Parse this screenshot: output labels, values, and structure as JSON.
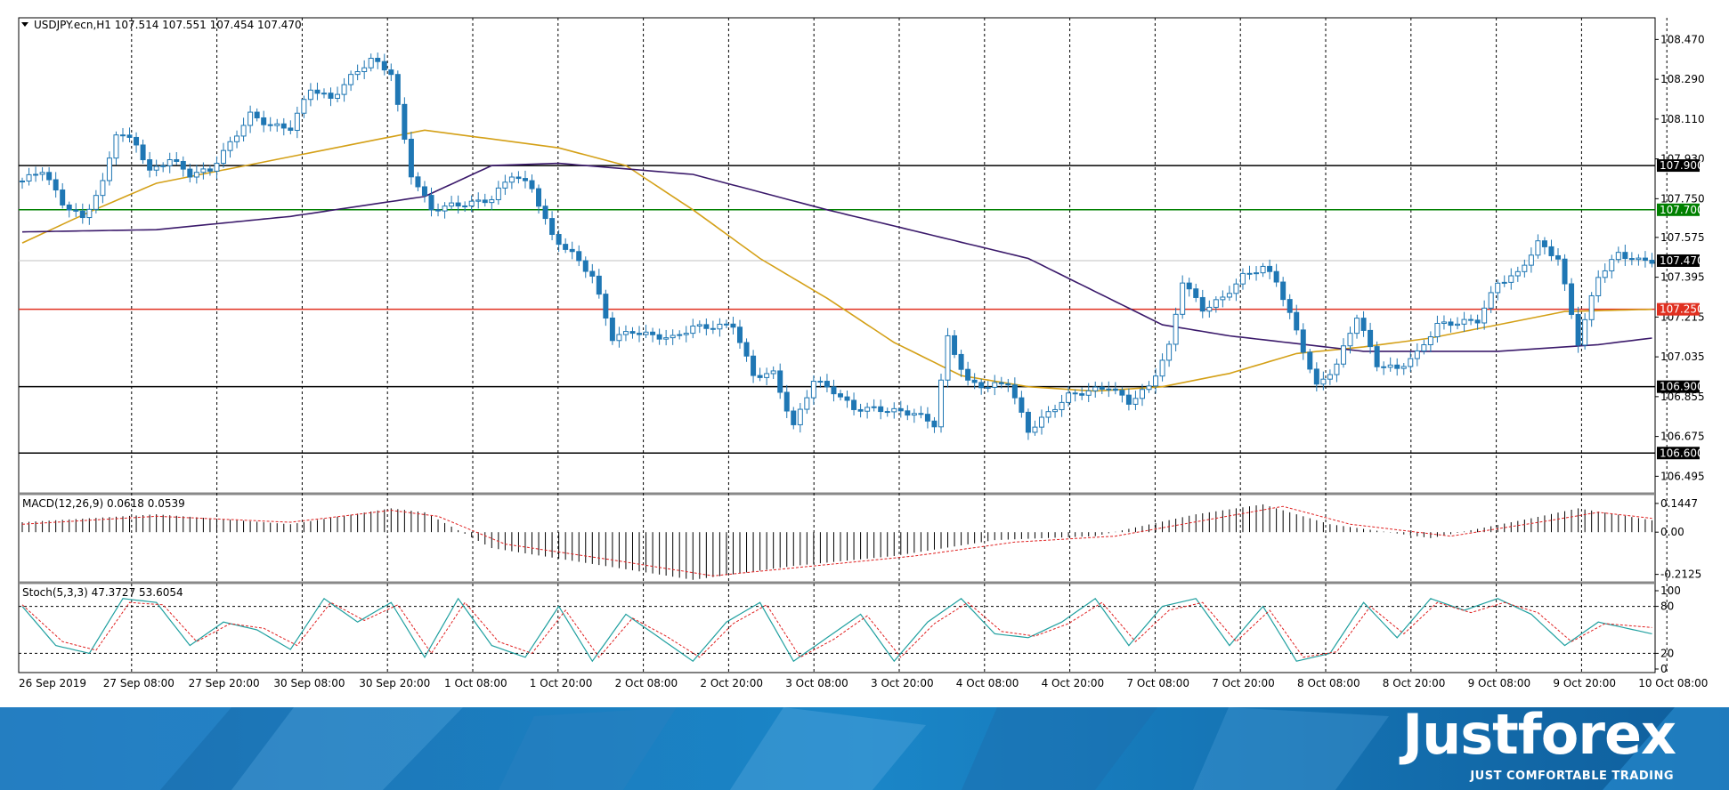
{
  "chart_title": "USDJPY.ecn,H1  107.514 107.551 107.454 107.470",
  "chart_data": {
    "type": "candlestick",
    "symbol": "USDJPY.ecn",
    "timeframe": "H1",
    "ohlc_header": {
      "open": 107.514,
      "high": 107.551,
      "low": 107.454,
      "close": 107.47
    },
    "x_tick_labels": [
      "26 Sep 2019",
      "27 Sep 08:00",
      "27 Sep 20:00",
      "30 Sep 08:00",
      "30 Sep 20:00",
      "1 Oct 08:00",
      "1 Oct 20:00",
      "2 Oct 08:00",
      "2 Oct 20:00",
      "3 Oct 08:00",
      "3 Oct 20:00",
      "4 Oct 08:00",
      "4 Oct 20:00",
      "7 Oct 08:00",
      "7 Oct 20:00",
      "8 Oct 08:00",
      "8 Oct 20:00",
      "9 Oct 08:00",
      "9 Oct 20:00",
      "10 Oct 08:00"
    ],
    "y_tick_labels": [
      "108.470",
      "108.290",
      "108.110",
      "107.930",
      "107.750",
      "107.575",
      "107.395",
      "107.215",
      "107.035",
      "106.855",
      "106.675",
      "106.495"
    ],
    "ylim": [
      106.42,
      108.56
    ],
    "current_price": {
      "label": "107.470",
      "value": 107.47
    },
    "horizontal_levels": [
      {
        "label": "107.900",
        "value": 107.9,
        "color": "#000000"
      },
      {
        "label": "107.700",
        "value": 107.7,
        "color": "#008000"
      },
      {
        "label": "107.250",
        "value": 107.25,
        "color": "#e03020"
      },
      {
        "label": "106.900",
        "value": 106.9,
        "color": "#000000"
      },
      {
        "label": "106.600",
        "value": 106.6,
        "color": "#000000"
      }
    ],
    "candle_color": "#1f77b4",
    "ma_fast_color": "#d4a017",
    "ma_slow_color": "#3b1a6b",
    "close_path": [
      [
        0,
        107.83
      ],
      [
        3,
        107.88
      ],
      [
        6,
        107.73
      ],
      [
        9,
        107.66
      ],
      [
        12,
        107.82
      ],
      [
        14,
        108.05
      ],
      [
        17,
        108.0
      ],
      [
        19,
        107.87
      ],
      [
        22,
        107.93
      ],
      [
        25,
        107.86
      ],
      [
        28,
        107.88
      ],
      [
        31,
        108.0
      ],
      [
        34,
        108.13
      ],
      [
        37,
        108.08
      ],
      [
        40,
        108.07
      ],
      [
        43,
        108.25
      ],
      [
        46,
        108.2
      ],
      [
        49,
        108.3
      ],
      [
        52,
        108.38
      ],
      [
        55,
        108.32
      ],
      [
        58,
        107.86
      ],
      [
        61,
        107.7
      ],
      [
        64,
        107.72
      ],
      [
        67,
        107.73
      ],
      [
        70,
        107.75
      ],
      [
        73,
        107.86
      ],
      [
        76,
        107.8
      ],
      [
        79,
        107.58
      ],
      [
        82,
        107.5
      ],
      [
        85,
        107.4
      ],
      [
        88,
        107.12
      ],
      [
        91,
        107.15
      ],
      [
        94,
        107.13
      ],
      [
        97,
        107.12
      ],
      [
        100,
        107.17
      ],
      [
        103,
        107.17
      ],
      [
        106,
        107.18
      ],
      [
        109,
        106.95
      ],
      [
        112,
        106.96
      ],
      [
        115,
        106.72
      ],
      [
        118,
        106.93
      ],
      [
        121,
        106.88
      ],
      [
        124,
        106.8
      ],
      [
        127,
        106.8
      ],
      [
        130,
        106.79
      ],
      [
        133,
        106.78
      ],
      [
        136,
        106.73
      ],
      [
        138,
        107.12
      ],
      [
        141,
        106.92
      ],
      [
        144,
        106.9
      ],
      [
        147,
        106.92
      ],
      [
        150,
        106.7
      ],
      [
        153,
        106.78
      ],
      [
        156,
        106.86
      ],
      [
        159,
        106.88
      ],
      [
        162,
        106.9
      ],
      [
        165,
        106.83
      ],
      [
        168,
        106.9
      ],
      [
        171,
        107.08
      ],
      [
        173,
        107.38
      ],
      [
        176,
        107.25
      ],
      [
        179,
        107.3
      ],
      [
        182,
        107.4
      ],
      [
        185,
        107.44
      ],
      [
        187,
        107.38
      ],
      [
        190,
        107.15
      ],
      [
        193,
        106.9
      ],
      [
        196,
        107.0
      ],
      [
        199,
        107.22
      ],
      [
        202,
        107.0
      ],
      [
        205,
        106.98
      ],
      [
        208,
        107.05
      ],
      [
        211,
        107.18
      ],
      [
        214,
        107.19
      ],
      [
        217,
        107.2
      ],
      [
        220,
        107.37
      ],
      [
        223,
        107.41
      ],
      [
        226,
        107.55
      ],
      [
        229,
        107.48
      ],
      [
        232,
        107.1
      ],
      [
        235,
        107.4
      ],
      [
        238,
        107.5
      ],
      [
        241,
        107.47
      ],
      [
        243,
        107.47
      ]
    ],
    "ma_fast_path": [
      [
        0,
        107.55
      ],
      [
        10,
        107.69
      ],
      [
        20,
        107.82
      ],
      [
        30,
        107.88
      ],
      [
        40,
        107.94
      ],
      [
        50,
        108.0
      ],
      [
        60,
        108.06
      ],
      [
        70,
        108.02
      ],
      [
        80,
        107.98
      ],
      [
        90,
        107.9
      ],
      [
        100,
        107.7
      ],
      [
        110,
        107.48
      ],
      [
        120,
        107.3
      ],
      [
        130,
        107.1
      ],
      [
        140,
        106.95
      ],
      [
        150,
        106.9
      ],
      [
        160,
        106.88
      ],
      [
        170,
        106.9
      ],
      [
        180,
        106.96
      ],
      [
        190,
        107.05
      ],
      [
        200,
        107.08
      ],
      [
        210,
        107.12
      ],
      [
        220,
        107.18
      ],
      [
        230,
        107.24
      ],
      [
        243,
        107.25
      ]
    ],
    "ma_slow_path": [
      [
        0,
        107.6
      ],
      [
        20,
        107.61
      ],
      [
        40,
        107.67
      ],
      [
        60,
        107.76
      ],
      [
        70,
        107.9
      ],
      [
        80,
        107.91
      ],
      [
        100,
        107.86
      ],
      [
        120,
        107.7
      ],
      [
        150,
        107.48
      ],
      [
        170,
        107.18
      ],
      [
        180,
        107.13
      ],
      [
        200,
        107.06
      ],
      [
        220,
        107.06
      ],
      [
        235,
        107.09
      ],
      [
        243,
        107.12
      ]
    ],
    "macd": {
      "label": "MACD(12,26,9) 0.0618 0.0539",
      "y_tick_labels": [
        "0.1447",
        "0.00",
        "-0.2125"
      ],
      "ylim": [
        -0.25,
        0.18
      ],
      "histogram_profile": [
        [
          0,
          0.05
        ],
        [
          20,
          0.09
        ],
        [
          40,
          0.04
        ],
        [
          55,
          0.12
        ],
        [
          60,
          0.1
        ],
        [
          70,
          -0.08
        ],
        [
          85,
          -0.16
        ],
        [
          100,
          -0.24
        ],
        [
          115,
          -0.17
        ],
        [
          130,
          -0.12
        ],
        [
          145,
          -0.04
        ],
        [
          160,
          -0.02
        ],
        [
          175,
          0.09
        ],
        [
          185,
          0.14
        ],
        [
          195,
          0.04
        ],
        [
          210,
          -0.03
        ],
        [
          225,
          0.07
        ],
        [
          232,
          0.12
        ],
        [
          243,
          0.06
        ]
      ],
      "signal_profile": [
        [
          0,
          0.04
        ],
        [
          20,
          0.08
        ],
        [
          40,
          0.05
        ],
        [
          55,
          0.11
        ],
        [
          62,
          0.08
        ],
        [
          72,
          -0.06
        ],
        [
          88,
          -0.14
        ],
        [
          103,
          -0.22
        ],
        [
          118,
          -0.17
        ],
        [
          133,
          -0.12
        ],
        [
          148,
          -0.05
        ],
        [
          163,
          -0.02
        ],
        [
          178,
          0.07
        ],
        [
          188,
          0.13
        ],
        [
          198,
          0.04
        ],
        [
          213,
          -0.02
        ],
        [
          228,
          0.06
        ],
        [
          235,
          0.1
        ],
        [
          243,
          0.07
        ]
      ]
    },
    "stoch": {
      "label": "Stoch(5,3,3) 47.3727 53.6054",
      "y_tick_labels": [
        "100",
        "80",
        "20",
        "0"
      ],
      "levels": [
        80,
        20
      ],
      "main_profile": [
        [
          0,
          80
        ],
        [
          5,
          30
        ],
        [
          10,
          20
        ],
        [
          15,
          90
        ],
        [
          20,
          85
        ],
        [
          25,
          30
        ],
        [
          30,
          60
        ],
        [
          35,
          50
        ],
        [
          40,
          25
        ],
        [
          45,
          90
        ],
        [
          50,
          60
        ],
        [
          55,
          85
        ],
        [
          60,
          15
        ],
        [
          65,
          90
        ],
        [
          70,
          30
        ],
        [
          75,
          15
        ],
        [
          80,
          80
        ],
        [
          85,
          10
        ],
        [
          90,
          70
        ],
        [
          95,
          40
        ],
        [
          100,
          10
        ],
        [
          105,
          60
        ],
        [
          110,
          85
        ],
        [
          115,
          10
        ],
        [
          120,
          40
        ],
        [
          125,
          70
        ],
        [
          130,
          10
        ],
        [
          135,
          60
        ],
        [
          140,
          90
        ],
        [
          145,
          45
        ],
        [
          150,
          40
        ],
        [
          155,
          60
        ],
        [
          160,
          90
        ],
        [
          165,
          30
        ],
        [
          170,
          80
        ],
        [
          175,
          90
        ],
        [
          180,
          30
        ],
        [
          185,
          80
        ],
        [
          190,
          10
        ],
        [
          195,
          20
        ],
        [
          200,
          85
        ],
        [
          205,
          40
        ],
        [
          210,
          90
        ],
        [
          215,
          75
        ],
        [
          220,
          90
        ],
        [
          225,
          70
        ],
        [
          230,
          30
        ],
        [
          235,
          60
        ],
        [
          243,
          45
        ]
      ],
      "signal_profile": [
        [
          0,
          82
        ],
        [
          6,
          35
        ],
        [
          11,
          24
        ],
        [
          16,
          85
        ],
        [
          21,
          82
        ],
        [
          26,
          35
        ],
        [
          31,
          58
        ],
        [
          36,
          52
        ],
        [
          41,
          30
        ],
        [
          46,
          85
        ],
        [
          51,
          62
        ],
        [
          56,
          82
        ],
        [
          61,
          20
        ],
        [
          66,
          85
        ],
        [
          71,
          35
        ],
        [
          76,
          20
        ],
        [
          81,
          75
        ],
        [
          86,
          15
        ],
        [
          91,
          65
        ],
        [
          96,
          42
        ],
        [
          101,
          15
        ],
        [
          106,
          58
        ],
        [
          111,
          82
        ],
        [
          116,
          15
        ],
        [
          121,
          38
        ],
        [
          126,
          68
        ],
        [
          131,
          15
        ],
        [
          136,
          58
        ],
        [
          141,
          85
        ],
        [
          146,
          48
        ],
        [
          151,
          42
        ],
        [
          156,
          58
        ],
        [
          161,
          85
        ],
        [
          166,
          35
        ],
        [
          171,
          75
        ],
        [
          176,
          85
        ],
        [
          181,
          35
        ],
        [
          186,
          75
        ],
        [
          191,
          15
        ],
        [
          196,
          22
        ],
        [
          201,
          80
        ],
        [
          206,
          45
        ],
        [
          211,
          85
        ],
        [
          216,
          72
        ],
        [
          221,
          85
        ],
        [
          226,
          72
        ],
        [
          231,
          35
        ],
        [
          236,
          58
        ],
        [
          243,
          53
        ]
      ]
    }
  },
  "branding": {
    "name": "Justforex",
    "tagline": "JUST COMFORTABLE TRADING"
  }
}
